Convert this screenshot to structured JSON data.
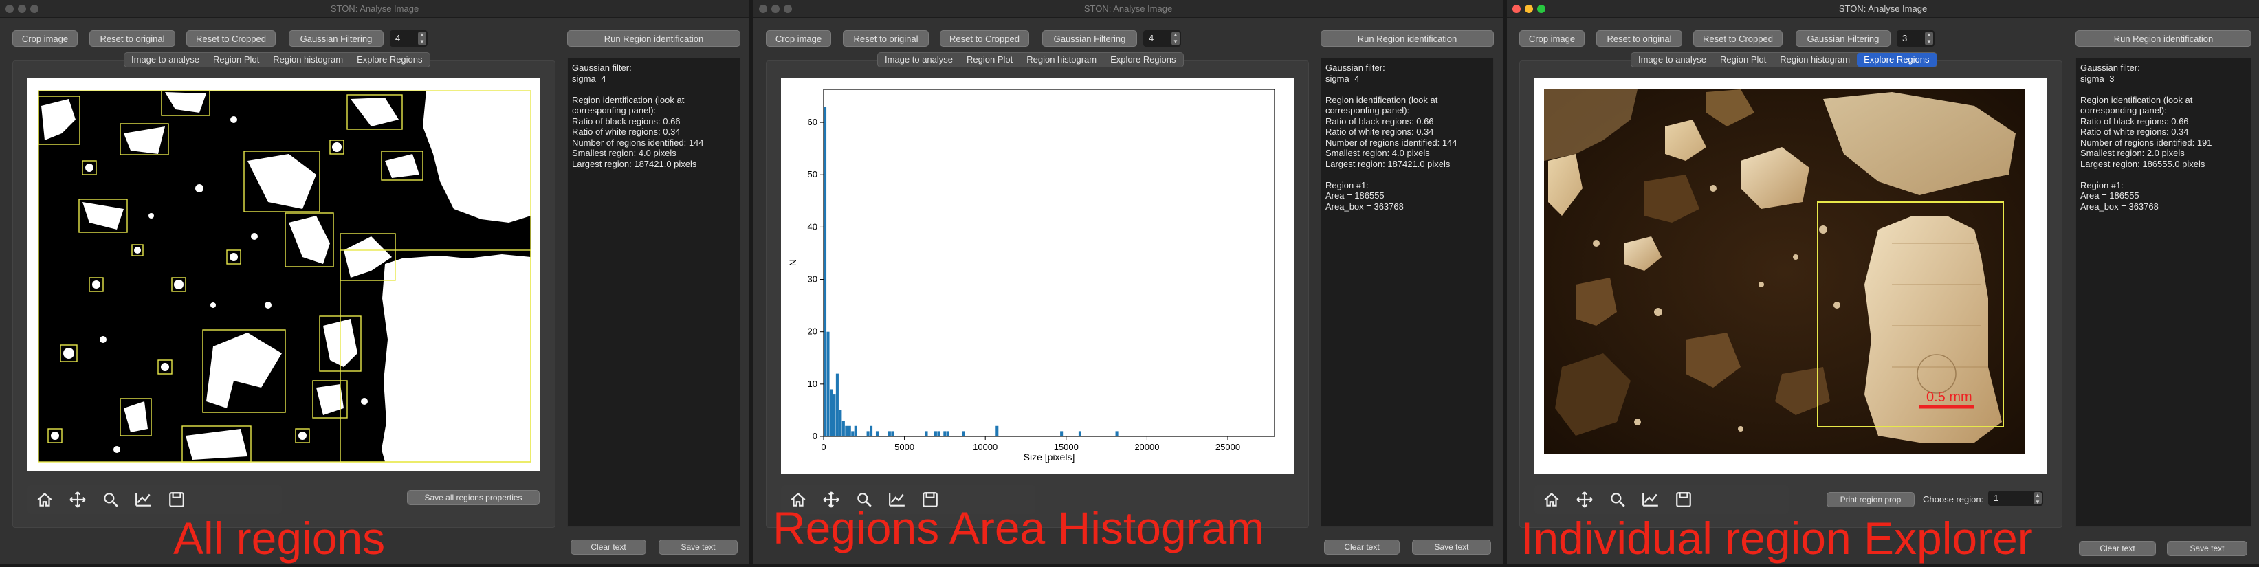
{
  "window_title": "STON: Analyse Image",
  "toolbar": {
    "crop": "Crop image",
    "reset_original": "Reset to original",
    "reset_cropped": "Reset to Cropped",
    "gaussian": "Gaussian Filtering",
    "run": "Run Region identification"
  },
  "tabs": [
    "Image to analyse",
    "Region Plot",
    "Region histogram",
    "Explore Regions"
  ],
  "bottom": {
    "clear": "Clear text",
    "save": "Save text",
    "save_all": "Save all regions properties",
    "print_prop": "Print region prop",
    "choose_region": "Choose region:"
  },
  "panels": [
    {
      "sigma": "4",
      "active_tab": "",
      "text": "Gaussian filter:\nsigma=4\n\nRegion identification (look at\ncorresponfing panel):\nRatio of black regions: 0.66\nRatio of white regions: 0.34\nNumber of regions identified: 144\nSmallest region: 4.0 pixels\nLargest region: 187421.0 pixels",
      "caption": "All regions"
    },
    {
      "sigma": "4",
      "active_tab": "",
      "text": "Gaussian filter:\nsigma=4\n\nRegion identification (look at\ncorresponfing panel):\nRatio of black regions: 0.66\nRatio of white regions: 0.34\nNumber of regions identified: 144\nSmallest region: 4.0 pixels\nLargest region: 187421.0 pixels\n\nRegion #1:\nArea = 186555\nArea_box = 363768",
      "caption": "Regions Area Histogram"
    },
    {
      "sigma": "3",
      "active_tab": "Explore Regions",
      "region_value": "1",
      "scale_bar": "0.5 mm",
      "text": "Gaussian filter:\nsigma=3\n\nRegion identification (look at\ncorresponding panel):\nRatio of black regions: 0.66\nRatio of white regions: 0.34\nNumber of regions identified: 191\nSmallest region: 2.0 pixels\nLargest region: 186555.0 pixels\n\nRegion #1:\nArea = 186555\nArea_box = 363768",
      "caption": "Individual region Explorer"
    }
  ],
  "icons": [
    "home-icon",
    "pan-icon",
    "zoom-icon",
    "subplots-icon",
    "save-icon"
  ],
  "colors": {
    "bar": "#1f77b4",
    "caption": "#ee2418",
    "box": "#e8e84a",
    "active_tab": "#2a62c9"
  },
  "chart_data": {
    "type": "bar",
    "xlabel": "Size [pixels]",
    "ylabel": "N",
    "xlim": [
      0,
      25000
    ],
    "ylim": [
      0,
      65
    ],
    "xticks": [
      0,
      5000,
      10000,
      15000,
      20000,
      25000
    ],
    "yticks": [
      0,
      10,
      20,
      30,
      40,
      50,
      60
    ],
    "bin_width": 190,
    "bins": [
      [
        0,
        63
      ],
      [
        190,
        20
      ],
      [
        380,
        9
      ],
      [
        570,
        8
      ],
      [
        760,
        12
      ],
      [
        950,
        5
      ],
      [
        1140,
        3
      ],
      [
        1330,
        2
      ],
      [
        1520,
        2
      ],
      [
        1710,
        1
      ],
      [
        1900,
        2
      ],
      [
        2660,
        1
      ],
      [
        2850,
        2
      ],
      [
        3230,
        1
      ],
      [
        3990,
        1
      ],
      [
        4180,
        1
      ],
      [
        6270,
        1
      ],
      [
        6840,
        1
      ],
      [
        7030,
        1
      ],
      [
        7410,
        1
      ],
      [
        7600,
        1
      ],
      [
        8550,
        1
      ],
      [
        10640,
        2
      ],
      [
        14630,
        1
      ],
      [
        15770,
        1
      ],
      [
        18050,
        1
      ]
    ]
  }
}
